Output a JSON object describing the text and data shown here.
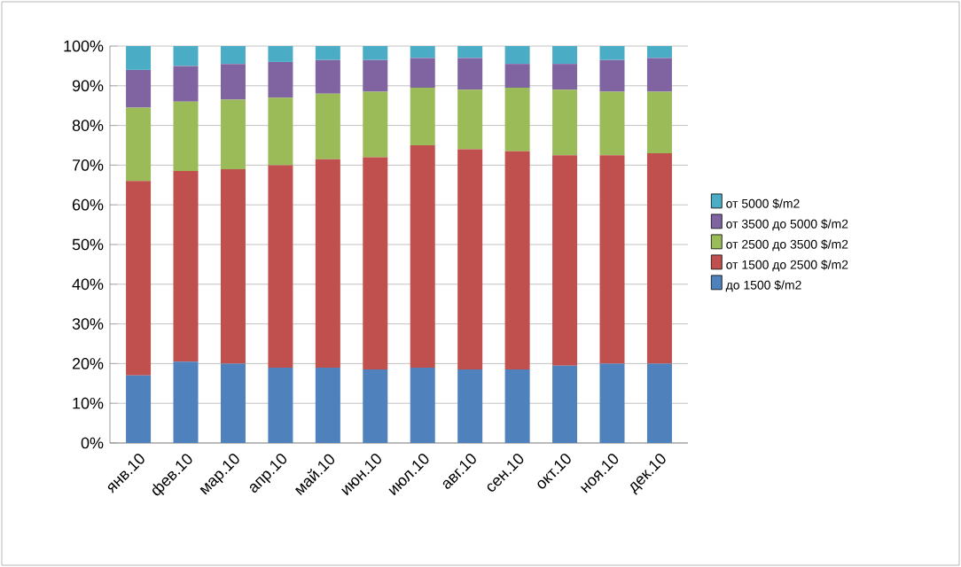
{
  "chart_data": {
    "type": "bar",
    "stacked": true,
    "categories": [
      "янв.10",
      "фев.10",
      "мар.10",
      "апр.10",
      "май.10",
      "июн.10",
      "июл.10",
      "авг.10",
      "сен.10",
      "окт.10",
      "ноя.10",
      "дек.10"
    ],
    "series": [
      {
        "name": "до 1500 $/m2",
        "color": "#4f81bd",
        "values": [
          17,
          20.5,
          20,
          19,
          19,
          18.5,
          19,
          18.5,
          18.5,
          19.5,
          20,
          20
        ]
      },
      {
        "name": "от 1500 до  2500 $/m2",
        "color": "#c0504d",
        "values": [
          49,
          48,
          49,
          51,
          52.5,
          53.5,
          56,
          55.5,
          55,
          53,
          52.5,
          53
        ]
      },
      {
        "name": "от 2500 до  3500 $/m2",
        "color": "#9bbb59",
        "values": [
          18.5,
          17.5,
          17.5,
          17,
          16.5,
          16.5,
          14.5,
          15,
          16,
          16.5,
          16,
          15.5
        ]
      },
      {
        "name": "от 3500 до  5000 $/m2",
        "color": "#8064a2",
        "values": [
          9.5,
          9,
          9,
          9,
          8.5,
          8,
          7.5,
          8,
          6,
          6.5,
          8,
          8.5
        ]
      },
      {
        "name": "от 5000 $/m2",
        "color": "#4bacc6",
        "values": [
          6,
          5,
          4.5,
          4,
          3.5,
          3.5,
          3,
          3,
          4.5,
          4.5,
          3.5,
          3
        ]
      }
    ],
    "ylim": [
      0,
      100
    ],
    "yticks": [
      {
        "value": 0,
        "label": "0%"
      },
      {
        "value": 10,
        "label": "10%"
      },
      {
        "value": 20,
        "label": "20%"
      },
      {
        "value": 30,
        "label": "30%"
      },
      {
        "value": 40,
        "label": "40%"
      },
      {
        "value": 50,
        "label": "50%"
      },
      {
        "value": 60,
        "label": "60%"
      },
      {
        "value": 70,
        "label": "70%"
      },
      {
        "value": 80,
        "label": "80%"
      },
      {
        "value": 90,
        "label": "90%"
      },
      {
        "value": 100,
        "label": "100%"
      }
    ],
    "grid": "y",
    "legend": "right"
  }
}
